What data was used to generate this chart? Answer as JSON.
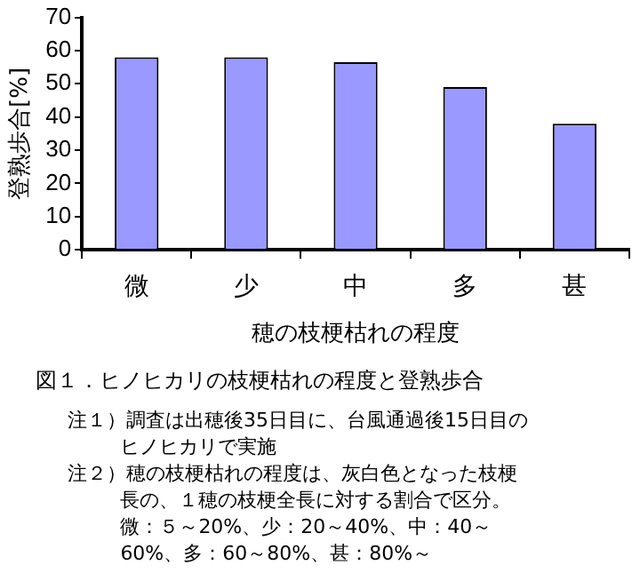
{
  "chart_data": {
    "type": "bar",
    "title": "図１．ヒノヒカリの枝梗枯れの程度と登熟歩合",
    "xlabel": "穂の枝梗枯れの程度",
    "ylabel": "登熟歩合[%]",
    "categories": [
      "微",
      "少",
      "中",
      "多",
      "甚"
    ],
    "values": [
      58,
      58,
      56.5,
      49,
      38
    ],
    "color": "#9999ff",
    "ylim": [
      0,
      70
    ],
    "yticks": [
      0,
      10,
      20,
      30,
      40,
      50,
      60,
      70
    ],
    "grid": false,
    "legend": false,
    "annotations": [
      "注１）調査は出穂後35日目に、台風通過後15日目のヒノヒカリで実施",
      "注２）穂の枝梗枯れの程度は、灰白色となった枝梗長の、１穂の枝梗全長に対する割合で区分。微：５～20%、少：20～40%、中：40～60%、多：60～80%、甚：80%～"
    ]
  }
}
